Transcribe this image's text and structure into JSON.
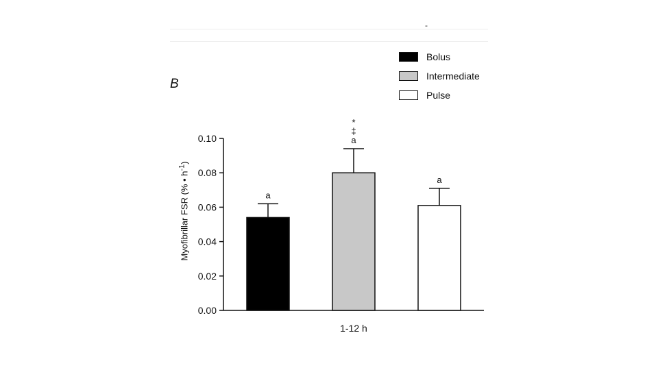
{
  "panel_label": "B",
  "top_mark": "-",
  "chart_data": {
    "type": "bar",
    "categories": [
      "Bolus",
      "Intermediate",
      "Pulse"
    ],
    "values": [
      0.054,
      0.08,
      0.061
    ],
    "errors": [
      0.008,
      0.014,
      0.01
    ],
    "annotations": [
      [
        "a"
      ],
      [
        "*",
        "‡",
        "a"
      ],
      [
        "a"
      ]
    ],
    "colors": [
      "#000000",
      "#c8c8c8",
      "#ffffff"
    ],
    "xlabel": "1-12 h",
    "ylabel_main": "Myofibrillar FSR (% ",
    "ylabel_dot": "•",
    "ylabel_unit": " h",
    "ylabel_sup": "-1",
    "ylabel_close": ")",
    "ylim": [
      0,
      0.1
    ],
    "yticks": [
      "0.00",
      "0.02",
      "0.04",
      "0.06",
      "0.08",
      "0.10"
    ],
    "legend": {
      "position": "top-right",
      "items": [
        "Bolus",
        "Intermediate",
        "Pulse"
      ]
    }
  }
}
